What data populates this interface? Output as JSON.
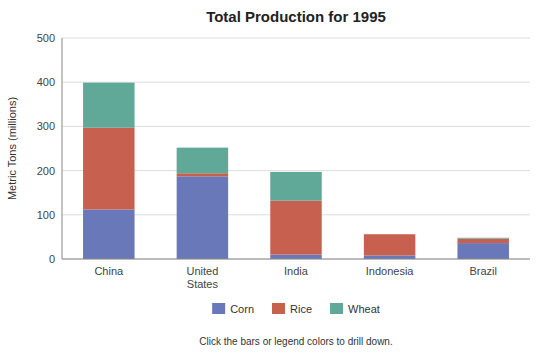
{
  "chart_data": {
    "type": "bar",
    "stacked": true,
    "title": "Total Production for 1995",
    "ylabel": "Metric Tons (millions)",
    "annotations": [
      "Click the bars or legend colors to drill down."
    ],
    "categories": [
      "China",
      "United\nStates",
      "India",
      "Indonesia",
      "Brazil"
    ],
    "series": [
      {
        "name": "Corn",
        "color": "#6878b8",
        "values": [
          112,
          187,
          10,
          8,
          36
        ]
      },
      {
        "name": "Rice",
        "color": "#c86050",
        "values": [
          185,
          7,
          122,
          48,
          10
        ]
      },
      {
        "name": "Wheat",
        "color": "#60a898",
        "values": [
          102,
          58,
          65,
          0,
          2
        ]
      }
    ],
    "ylim": [
      0,
      500
    ],
    "yticks": [
      0,
      100,
      200,
      300,
      400,
      500
    ],
    "grid": true,
    "legend": "bottom"
  }
}
